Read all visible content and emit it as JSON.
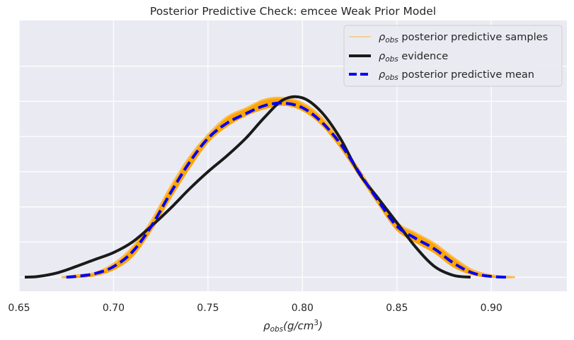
{
  "chart_data": {
    "type": "line",
    "title": "Posterior Predictive Check: emcee Weak Prior Model",
    "xlabel": "ρobs(g/cm3)",
    "ylabel": "",
    "xlim": [
      0.65,
      0.94
    ],
    "ylim": [
      -0.4,
      7.3
    ],
    "x_ticks": [
      "0.65",
      "0.70",
      "0.75",
      "0.80",
      "0.85",
      "0.90"
    ],
    "y_ticks": [
      0,
      1,
      2,
      3,
      4,
      5,
      6
    ],
    "grid": true,
    "legend_position": "top-right",
    "series": [
      {
        "name": "ρobs posterior predictive samples",
        "style": "band",
        "color": "#FFA500",
        "x": [
          0.673,
          0.68,
          0.69,
          0.7,
          0.71,
          0.72,
          0.73,
          0.74,
          0.75,
          0.76,
          0.77,
          0.78,
          0.79,
          0.8,
          0.81,
          0.82,
          0.83,
          0.84,
          0.85,
          0.86,
          0.87,
          0.88,
          0.89,
          0.9,
          0.912
        ],
        "lower": [
          0.0,
          0.0,
          0.05,
          0.22,
          0.6,
          1.35,
          2.25,
          3.1,
          3.85,
          4.3,
          4.6,
          4.8,
          4.9,
          4.75,
          4.35,
          3.7,
          2.9,
          2.1,
          1.35,
          1.0,
          0.7,
          0.3,
          0.08,
          0.01,
          0.0
        ],
        "upper": [
          0.0,
          0.05,
          0.12,
          0.38,
          0.85,
          1.6,
          2.55,
          3.4,
          4.05,
          4.55,
          4.8,
          5.05,
          5.1,
          4.95,
          4.55,
          3.85,
          3.05,
          2.25,
          1.55,
          1.25,
          0.95,
          0.55,
          0.2,
          0.05,
          0.0
        ]
      },
      {
        "name": "ρobs evidence",
        "style": "solid",
        "color": "#1a1a1a",
        "x": [
          0.653,
          0.66,
          0.67,
          0.68,
          0.69,
          0.7,
          0.71,
          0.72,
          0.73,
          0.74,
          0.75,
          0.76,
          0.77,
          0.78,
          0.79,
          0.8,
          0.81,
          0.82,
          0.83,
          0.84,
          0.85,
          0.86,
          0.87,
          0.88,
          0.889
        ],
        "y": [
          0.0,
          0.02,
          0.12,
          0.3,
          0.5,
          0.7,
          1.0,
          1.45,
          1.95,
          2.5,
          3.0,
          3.45,
          3.95,
          4.55,
          5.05,
          5.1,
          4.7,
          3.95,
          2.95,
          2.25,
          1.55,
          0.85,
          0.3,
          0.05,
          0.0
        ]
      },
      {
        "name": "ρobs posterior predictive mean",
        "style": "dashed",
        "color": "#0000FF",
        "x": [
          0.675,
          0.68,
          0.69,
          0.7,
          0.71,
          0.72,
          0.73,
          0.74,
          0.75,
          0.76,
          0.77,
          0.78,
          0.79,
          0.8,
          0.81,
          0.82,
          0.83,
          0.84,
          0.85,
          0.86,
          0.87,
          0.88,
          0.89,
          0.9,
          0.908
        ],
        "y": [
          0.0,
          0.02,
          0.1,
          0.3,
          0.72,
          1.45,
          2.38,
          3.25,
          3.95,
          4.38,
          4.65,
          4.88,
          4.95,
          4.82,
          4.42,
          3.8,
          2.98,
          2.18,
          1.45,
          1.1,
          0.8,
          0.4,
          0.12,
          0.02,
          0.0
        ]
      }
    ]
  }
}
